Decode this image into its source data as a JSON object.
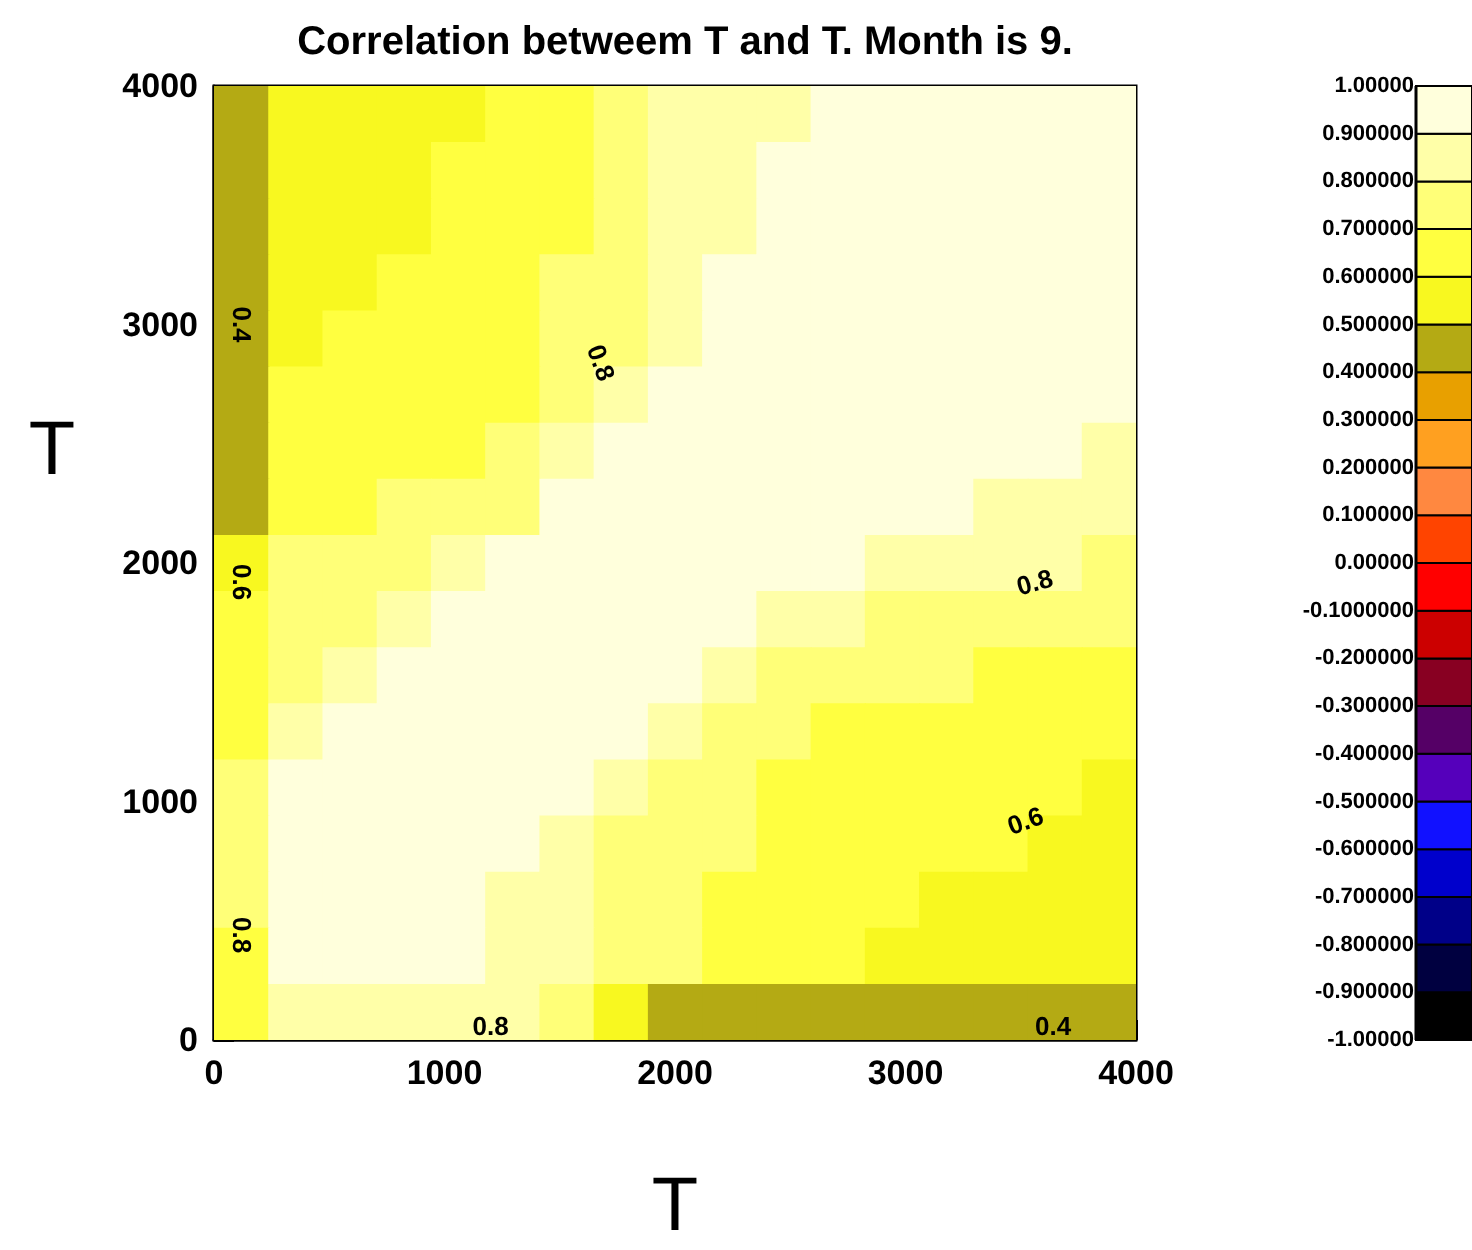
{
  "chart_data": {
    "type": "heatmap",
    "title": "Correlation betweem T and T. Month is 9.",
    "xlabel": "T",
    "ylabel": "T",
    "xlim": [
      0,
      4000
    ],
    "xticks": [
      0,
      1000,
      2000,
      3000,
      4000
    ],
    "ylim": [
      0,
      4000
    ],
    "yticks": [
      0,
      1000,
      2000,
      3000,
      4000
    ],
    "clim": [
      -1,
      1
    ],
    "cticks": [
      {
        "value": -1,
        "label": "-1.00000"
      },
      {
        "value": -0.9,
        "label": "-0.900000"
      },
      {
        "value": -0.8,
        "label": "-0.800000"
      },
      {
        "value": -0.7,
        "label": "-0.700000"
      },
      {
        "value": -0.6,
        "label": "-0.600000"
      },
      {
        "value": -0.5,
        "label": "-0.500000"
      },
      {
        "value": -0.4,
        "label": "-0.400000"
      },
      {
        "value": -0.3,
        "label": "-0.300000"
      },
      {
        "value": -0.2,
        "label": "-0.200000"
      },
      {
        "value": -0.1,
        "label": "-0.1000000"
      },
      {
        "value": 0,
        "label": "0.00000"
      },
      {
        "value": 0.1,
        "label": "0.100000"
      },
      {
        "value": 0.2,
        "label": "0.200000"
      },
      {
        "value": 0.3,
        "label": "0.300000"
      },
      {
        "value": 0.4,
        "label": "0.400000"
      },
      {
        "value": 0.5,
        "label": "0.500000"
      },
      {
        "value": 0.6,
        "label": "0.600000"
      },
      {
        "value": 0.7,
        "label": "0.700000"
      },
      {
        "value": 0.8,
        "label": "0.800000"
      },
      {
        "value": 0.9,
        "label": "0.900000"
      },
      {
        "value": 1,
        "label": "1.00000"
      }
    ],
    "cells": [
      [
        0.45,
        0.55,
        0.55,
        0.55,
        0.55,
        0.65,
        0.65,
        0.75,
        0.85,
        0.85,
        0.85,
        0.95,
        0.95,
        0.95,
        0.95,
        0.95,
        0.95
      ],
      [
        0.45,
        0.55,
        0.55,
        0.55,
        0.65,
        0.65,
        0.65,
        0.75,
        0.85,
        0.85,
        0.95,
        0.95,
        0.95,
        0.95,
        0.95,
        0.95,
        0.95
      ],
      [
        0.45,
        0.55,
        0.55,
        0.55,
        0.65,
        0.65,
        0.65,
        0.75,
        0.85,
        0.85,
        0.95,
        0.95,
        0.95,
        0.95,
        0.95,
        0.95,
        0.95
      ],
      [
        0.45,
        0.55,
        0.55,
        0.65,
        0.65,
        0.65,
        0.75,
        0.75,
        0.85,
        0.95,
        0.95,
        0.95,
        0.95,
        0.95,
        0.95,
        0.95,
        0.95
      ],
      [
        0.45,
        0.55,
        0.65,
        0.65,
        0.65,
        0.65,
        0.75,
        0.75,
        0.85,
        0.95,
        0.95,
        0.95,
        0.95,
        0.95,
        0.95,
        0.95,
        0.95
      ],
      [
        0.45,
        0.65,
        0.65,
        0.65,
        0.65,
        0.65,
        0.75,
        0.85,
        0.95,
        0.95,
        0.95,
        0.95,
        0.95,
        0.95,
        0.95,
        0.95,
        0.95
      ],
      [
        0.45,
        0.65,
        0.65,
        0.65,
        0.65,
        0.75,
        0.85,
        0.95,
        0.95,
        0.95,
        0.95,
        0.95,
        0.95,
        0.95,
        0.95,
        0.95,
        0.85
      ],
      [
        0.45,
        0.65,
        0.65,
        0.75,
        0.75,
        0.75,
        0.95,
        0.95,
        0.95,
        0.95,
        0.95,
        0.95,
        0.95,
        0.95,
        0.85,
        0.85,
        0.85
      ],
      [
        0.55,
        0.75,
        0.75,
        0.75,
        0.85,
        0.95,
        0.95,
        0.95,
        0.95,
        0.95,
        0.95,
        0.95,
        0.85,
        0.85,
        0.85,
        0.85,
        0.75
      ],
      [
        0.65,
        0.75,
        0.75,
        0.85,
        0.95,
        0.95,
        0.95,
        0.95,
        0.95,
        0.95,
        0.85,
        0.85,
        0.75,
        0.75,
        0.75,
        0.75,
        0.75
      ],
      [
        0.65,
        0.75,
        0.85,
        0.95,
        0.95,
        0.95,
        0.95,
        0.95,
        0.95,
        0.85,
        0.75,
        0.75,
        0.75,
        0.75,
        0.65,
        0.65,
        0.65
      ],
      [
        0.65,
        0.85,
        0.95,
        0.95,
        0.95,
        0.95,
        0.95,
        0.95,
        0.85,
        0.75,
        0.75,
        0.65,
        0.65,
        0.65,
        0.65,
        0.65,
        0.65
      ],
      [
        0.75,
        0.95,
        0.95,
        0.95,
        0.95,
        0.95,
        0.95,
        0.85,
        0.75,
        0.75,
        0.65,
        0.65,
        0.65,
        0.65,
        0.65,
        0.65,
        0.55
      ],
      [
        0.75,
        0.95,
        0.95,
        0.95,
        0.95,
        0.95,
        0.85,
        0.75,
        0.75,
        0.75,
        0.65,
        0.65,
        0.65,
        0.65,
        0.65,
        0.55,
        0.55
      ],
      [
        0.75,
        0.95,
        0.95,
        0.95,
        0.95,
        0.85,
        0.85,
        0.75,
        0.75,
        0.65,
        0.65,
        0.65,
        0.65,
        0.55,
        0.55,
        0.55,
        0.55
      ],
      [
        0.65,
        0.95,
        0.95,
        0.95,
        0.95,
        0.85,
        0.85,
        0.75,
        0.75,
        0.65,
        0.65,
        0.65,
        0.55,
        0.55,
        0.55,
        0.55,
        0.55
      ],
      [
        0.65,
        0.85,
        0.85,
        0.85,
        0.85,
        0.85,
        0.75,
        0.55,
        0.45,
        0.45,
        0.45,
        0.45,
        0.45,
        0.45,
        0.45,
        0.45,
        0.45
      ]
    ],
    "annotations": [
      "0.4",
      "0.6",
      "0.8",
      "0.8",
      "0.8",
      "0.6",
      "0.8",
      "0.4"
    ]
  }
}
